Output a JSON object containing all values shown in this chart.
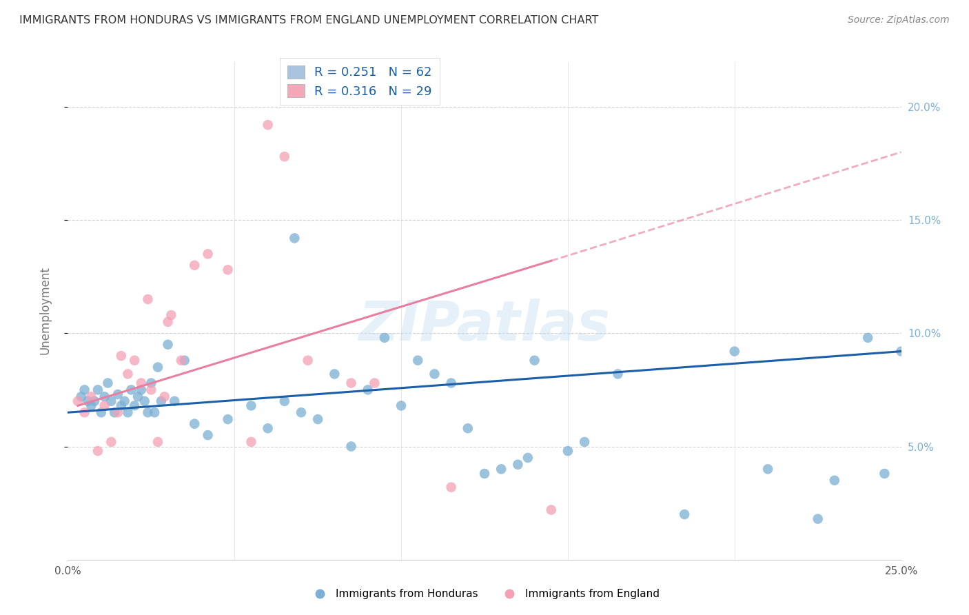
{
  "title": "IMMIGRANTS FROM HONDURAS VS IMMIGRANTS FROM ENGLAND UNEMPLOYMENT CORRELATION CHART",
  "source": "Source: ZipAtlas.com",
  "ylabel": "Unemployment",
  "xlim": [
    0.0,
    25.0
  ],
  "ylim": [
    0.0,
    22.0
  ],
  "legend1_label_r": "R = 0.251",
  "legend1_label_n": "N = 62",
  "legend2_label_r": "R = 0.316",
  "legend2_label_n": "N = 29",
  "legend1_color": "#a8c4e0",
  "legend2_color": "#f4a7b9",
  "watermark": "ZIPatlas",
  "blue_color": "#7bafd4",
  "pink_color": "#f4a0b5",
  "line_blue": "#1a5fa8",
  "line_pink": "#e87fa0",
  "honduras_x": [
    0.4,
    0.5,
    0.6,
    0.7,
    0.8,
    0.9,
    1.0,
    1.1,
    1.2,
    1.3,
    1.4,
    1.5,
    1.6,
    1.7,
    1.8,
    1.9,
    2.0,
    2.1,
    2.2,
    2.3,
    2.4,
    2.5,
    2.6,
    2.7,
    2.8,
    3.0,
    3.2,
    3.5,
    3.8,
    4.2,
    4.8,
    5.5,
    6.0,
    6.5,
    7.0,
    7.5,
    8.0,
    9.0,
    9.5,
    10.0,
    10.5,
    11.0,
    12.0,
    13.0,
    13.5,
    14.0,
    15.0,
    15.5,
    16.5,
    18.5,
    20.0,
    21.0,
    22.5,
    23.0,
    24.0,
    24.5,
    25.0,
    12.5,
    13.8,
    6.8,
    8.5,
    11.5
  ],
  "honduras_y": [
    7.2,
    7.5,
    7.0,
    6.8,
    7.0,
    7.5,
    6.5,
    7.2,
    7.8,
    7.0,
    6.5,
    7.3,
    6.8,
    7.0,
    6.5,
    7.5,
    6.8,
    7.2,
    7.5,
    7.0,
    6.5,
    7.8,
    6.5,
    8.5,
    7.0,
    9.5,
    7.0,
    8.8,
    6.0,
    5.5,
    6.2,
    6.8,
    5.8,
    7.0,
    6.5,
    6.2,
    8.2,
    7.5,
    9.8,
    6.8,
    8.8,
    8.2,
    5.8,
    4.0,
    4.2,
    8.8,
    4.8,
    5.2,
    8.2,
    2.0,
    9.2,
    4.0,
    1.8,
    3.5,
    9.8,
    3.8,
    9.2,
    3.8,
    4.5,
    14.2,
    5.0,
    7.8
  ],
  "england_x": [
    0.3,
    0.5,
    0.7,
    0.9,
    1.1,
    1.3,
    1.5,
    1.8,
    2.0,
    2.2,
    2.5,
    2.7,
    2.9,
    3.1,
    3.4,
    3.8,
    4.2,
    5.5,
    6.5,
    8.5,
    9.2,
    11.5,
    14.5,
    1.6,
    2.4,
    3.0,
    4.8,
    7.2,
    6.0
  ],
  "england_y": [
    7.0,
    6.5,
    7.2,
    4.8,
    6.8,
    5.2,
    6.5,
    8.2,
    8.8,
    7.8,
    7.5,
    5.2,
    7.2,
    10.8,
    8.8,
    13.0,
    13.5,
    5.2,
    17.8,
    7.8,
    7.8,
    3.2,
    2.2,
    9.0,
    11.5,
    10.5,
    12.8,
    8.8,
    19.2
  ],
  "reg_blue_x0": 0.0,
  "reg_blue_y0": 6.5,
  "reg_blue_x1": 25.0,
  "reg_blue_y1": 9.2,
  "reg_pink_solid_x0": 0.3,
  "reg_pink_solid_y0": 6.8,
  "reg_pink_solid_x1": 14.5,
  "reg_pink_solid_y1": 13.2,
  "reg_pink_dash_x0": 14.5,
  "reg_pink_dash_y0": 13.2,
  "reg_pink_dash_x1": 25.0,
  "reg_pink_dash_y1": 18.0
}
